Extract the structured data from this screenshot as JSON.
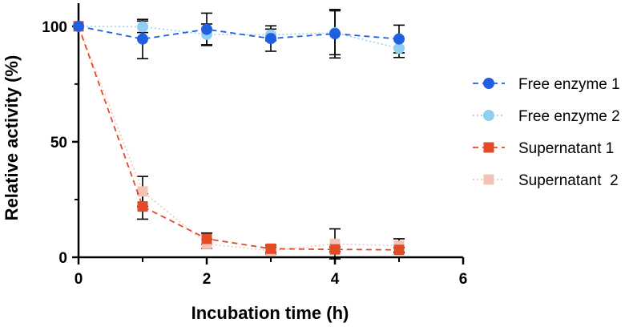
{
  "chart_data": {
    "type": "line",
    "xlabel": "Incubation time (h)",
    "ylabel": "Relative activity (%)",
    "xlim": [
      0,
      6
    ],
    "ylim": [
      0,
      110
    ],
    "x_ticks": [
      0,
      2,
      4,
      6
    ],
    "x_tick_labels": [
      "0",
      "2",
      "4",
      "6"
    ],
    "y_ticks": [
      0,
      50,
      100
    ],
    "y_tick_labels": [
      "0",
      "50",
      "100"
    ],
    "grid": false,
    "legend_position": "right",
    "series": [
      {
        "name": "Free enzyme 1",
        "color": "#1f5fe0",
        "marker": "circle",
        "line": "dashed",
        "x": [
          0,
          1,
          2,
          3,
          4,
          5
        ],
        "y": [
          100,
          94.5,
          98.7,
          94.7,
          96.8,
          94.5
        ],
        "err": [
          0,
          8.5,
          7.0,
          5.5,
          10.5,
          6.0
        ]
      },
      {
        "name": "Free enzyme 2",
        "color": "#8fd0f0",
        "marker": "circle",
        "line": "dotted",
        "x": [
          0,
          1,
          2,
          3,
          4,
          5
        ],
        "y": [
          100,
          99.8,
          96.5,
          96.3,
          97.2,
          90.5
        ],
        "err": [
          0,
          2.5,
          4.5,
          2.5,
          9.5,
          4.0
        ]
      },
      {
        "name": "Supernatant 1",
        "color": "#e34a26",
        "marker": "square",
        "line": "dashed",
        "x": [
          0,
          1,
          2,
          3,
          4,
          5
        ],
        "y": [
          100,
          22,
          8,
          3.7,
          3.4,
          3.2
        ],
        "err": [
          0,
          5.5,
          2.5,
          1.5,
          1.0,
          1.0
        ]
      },
      {
        "name": "Supernatant  2",
        "color": "#f2c4b8",
        "marker": "square",
        "line": "dotted",
        "x": [
          0,
          1,
          2,
          3,
          4,
          5
        ],
        "y": [
          100,
          28.5,
          5.8,
          2.8,
          5.8,
          5.0
        ],
        "err": [
          0,
          6.5,
          2.0,
          1.5,
          6.5,
          3.0
        ]
      }
    ]
  }
}
